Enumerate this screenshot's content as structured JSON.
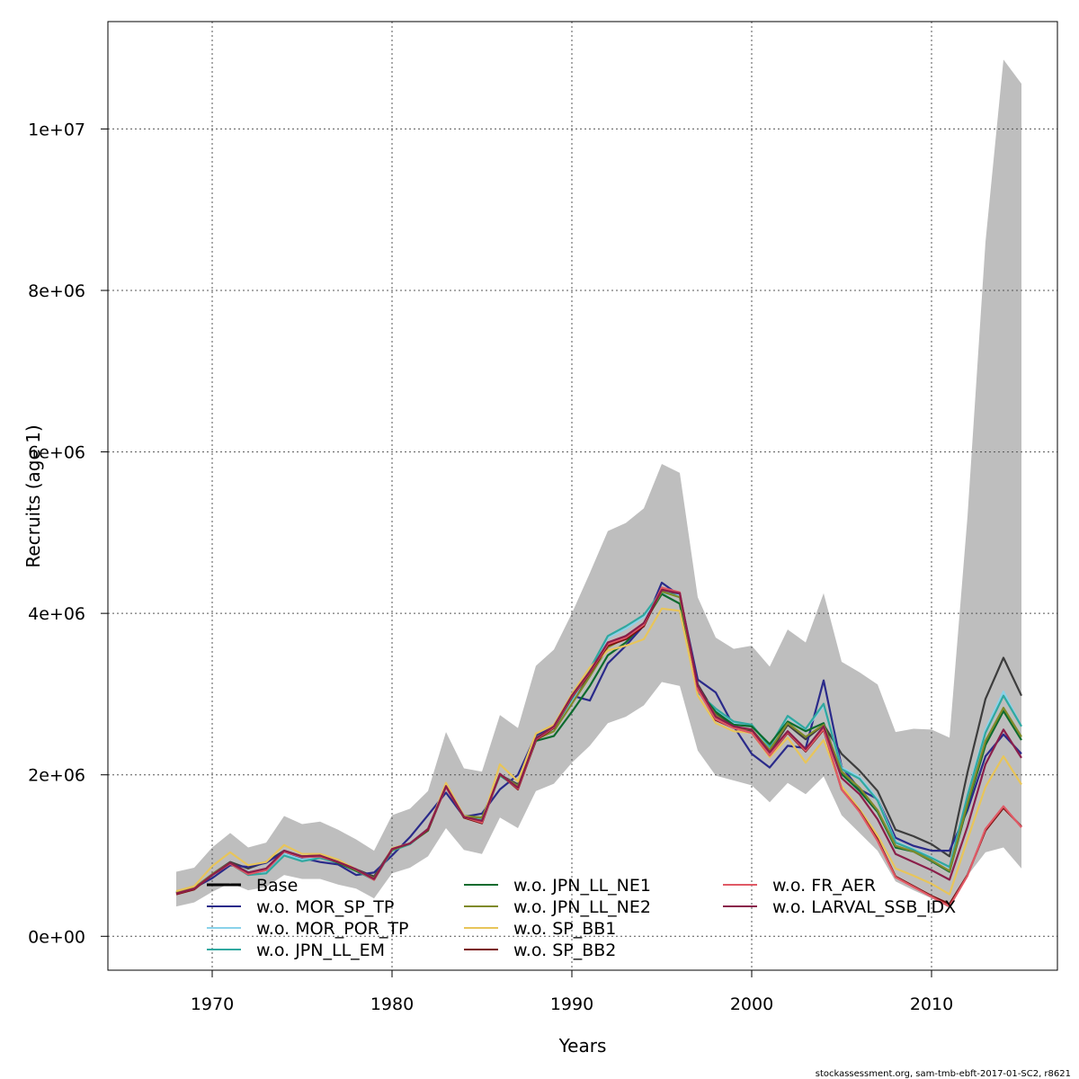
{
  "chart_data": {
    "type": "line",
    "xlabel": "Years",
    "ylabel": "Recruits (age 1)",
    "xlim": [
      1964.2,
      2017.0
    ],
    "ylim": [
      -420000,
      11330000
    ],
    "xticks": [
      1970,
      1980,
      1990,
      2000,
      2010
    ],
    "xtick_labels": [
      "1970",
      "1980",
      "1990",
      "2000",
      "2010"
    ],
    "yticks": [
      0,
      2000000,
      4000000,
      6000000,
      8000000,
      10000000
    ],
    "ytick_labels": [
      "0e+00",
      "2e+06",
      "4e+06",
      "6e+06",
      "8e+06",
      "1e+07"
    ],
    "grid": true,
    "legend_position": "bottom",
    "x": [
      1968,
      1969,
      1970,
      1971,
      1972,
      1973,
      1974,
      1975,
      1976,
      1977,
      1978,
      1979,
      1980,
      1981,
      1982,
      1983,
      1984,
      1985,
      1986,
      1987,
      1988,
      1989,
      1990,
      1991,
      1992,
      1993,
      1994,
      1995,
      1996,
      1997,
      1998,
      1999,
      2000,
      2001,
      2002,
      2003,
      2004,
      2005,
      2006,
      2007,
      2008,
      2009,
      2010,
      2011,
      2012,
      2013,
      2014,
      2015
    ],
    "band": {
      "color": "#bebebe",
      "upper": [
        800000,
        850000,
        1100000,
        1280000,
        1100000,
        1160000,
        1490000,
        1390000,
        1420000,
        1320000,
        1200000,
        1060000,
        1500000,
        1580000,
        1800000,
        2530000,
        2080000,
        2040000,
        2740000,
        2580000,
        3350000,
        3550000,
        4000000,
        4500000,
        5020000,
        5120000,
        5300000,
        5850000,
        5740000,
        4200000,
        3700000,
        3560000,
        3600000,
        3340000,
        3800000,
        3640000,
        4250000,
        3400000,
        3270000,
        3120000,
        2530000,
        2570000,
        2560000,
        2460000,
        5200000,
        8600000,
        10860000,
        10560000
      ],
      "lower": [
        370000,
        420000,
        550000,
        660000,
        570000,
        610000,
        760000,
        710000,
        710000,
        640000,
        590000,
        470000,
        780000,
        850000,
        990000,
        1340000,
        1070000,
        1020000,
        1470000,
        1340000,
        1800000,
        1890000,
        2150000,
        2360000,
        2640000,
        2720000,
        2860000,
        3150000,
        3100000,
        2300000,
        1990000,
        1930000,
        1870000,
        1660000,
        1900000,
        1760000,
        1980000,
        1500000,
        1280000,
        1060000,
        680000,
        570000,
        470000,
        350000,
        750000,
        1040000,
        1100000,
        840000
      ]
    },
    "series": [
      {
        "name": "Base",
        "color": "#3d3d3d",
        "values": [
          540000,
          600000,
          770000,
          920000,
          840000,
          920000,
          1060000,
          990000,
          1000000,
          920000,
          830000,
          740000,
          1080000,
          1150000,
          1330000,
          1870000,
          1490000,
          1460000,
          2000000,
          1880000,
          2460000,
          2570000,
          2900000,
          3250000,
          3620000,
          3720000,
          3870000,
          4300000,
          4230000,
          3120000,
          2750000,
          2600000,
          2540000,
          2280000,
          2620000,
          2440000,
          2620000,
          2260000,
          2050000,
          1800000,
          1320000,
          1240000,
          1140000,
          990000,
          2030000,
          2940000,
          3450000,
          2980000
        ]
      },
      {
        "name": "w.o. MOR_SP_TP",
        "color": "#2a2a8a",
        "values": [
          540000,
          600000,
          720000,
          880000,
          860000,
          910000,
          1050000,
          970000,
          920000,
          890000,
          760000,
          790000,
          1000000,
          1230000,
          1500000,
          1780000,
          1480000,
          1520000,
          1820000,
          2000000,
          2490000,
          2600000,
          2980000,
          2920000,
          3380000,
          3600000,
          3850000,
          4380000,
          4220000,
          3180000,
          3020000,
          2600000,
          2260000,
          2090000,
          2360000,
          2330000,
          3170000,
          2100000,
          1820000,
          1700000,
          1220000,
          1120000,
          1060000,
          1060000,
          1560000,
          2230000,
          2500000,
          2260000
        ]
      },
      {
        "name": "w.o. MOR_POR_TP",
        "color": "#8ad2ea",
        "values": [
          540000,
          600000,
          770000,
          900000,
          800000,
          790000,
          1020000,
          950000,
          990000,
          920000,
          830000,
          710000,
          1070000,
          1150000,
          1330000,
          1860000,
          1480000,
          1450000,
          2000000,
          1860000,
          2440000,
          2560000,
          2920000,
          3290000,
          3700000,
          3810000,
          3960000,
          4250000,
          4220000,
          3020000,
          2800000,
          2640000,
          2620000,
          2330000,
          2720000,
          2560000,
          2860000,
          2090000,
          1970000,
          1700000,
          1170000,
          1080000,
          980000,
          850000,
          1760000,
          2560000,
          3030000,
          2600000
        ]
      },
      {
        "name": "w.o. JPN_LL_EM",
        "color": "#30a8a0",
        "values": [
          540000,
          600000,
          760000,
          900000,
          760000,
          780000,
          1000000,
          930000,
          970000,
          910000,
          810000,
          700000,
          1060000,
          1140000,
          1320000,
          1860000,
          1470000,
          1440000,
          1990000,
          1840000,
          2440000,
          2580000,
          2940000,
          3310000,
          3720000,
          3840000,
          3980000,
          4280000,
          4200000,
          3020000,
          2820000,
          2660000,
          2620000,
          2350000,
          2730000,
          2570000,
          2880000,
          2070000,
          1950000,
          1680000,
          1160000,
          1070000,
          970000,
          860000,
          1740000,
          2520000,
          2980000,
          2600000
        ]
      },
      {
        "name": "w.o. JPN_LL_NE1",
        "color": "#0c6b2e",
        "values": [
          540000,
          600000,
          760000,
          910000,
          790000,
          830000,
          1050000,
          990000,
          1000000,
          910000,
          810000,
          720000,
          1070000,
          1150000,
          1310000,
          1860000,
          1490000,
          1470000,
          2000000,
          1840000,
          2420000,
          2480000,
          2780000,
          3100000,
          3480000,
          3640000,
          3880000,
          4240000,
          4120000,
          3050000,
          2780000,
          2620000,
          2600000,
          2380000,
          2660000,
          2540000,
          2640000,
          2010000,
          1800000,
          1540000,
          1100000,
          1050000,
          930000,
          800000,
          1620000,
          2370000,
          2790000,
          2430000
        ]
      },
      {
        "name": "w.o. JPN_LL_NE2",
        "color": "#7f8a2a",
        "values": [
          540000,
          600000,
          770000,
          910000,
          790000,
          830000,
          1050000,
          990000,
          1000000,
          920000,
          820000,
          720000,
          1070000,
          1150000,
          1320000,
          1870000,
          1490000,
          1470000,
          2000000,
          1860000,
          2440000,
          2540000,
          2880000,
          3220000,
          3580000,
          3700000,
          3860000,
          4270000,
          4200000,
          3060000,
          2740000,
          2580000,
          2560000,
          2310000,
          2640000,
          2470000,
          2620000,
          2040000,
          1840000,
          1560000,
          1120000,
          1050000,
          940000,
          810000,
          1650000,
          2420000,
          2830000,
          2470000
        ]
      },
      {
        "name": "w.o. SP_BB1",
        "color": "#e8c55a",
        "values": [
          560000,
          620000,
          870000,
          1040000,
          880000,
          920000,
          1130000,
          1020000,
          1020000,
          950000,
          830000,
          700000,
          1090000,
          1150000,
          1320000,
          1900000,
          1490000,
          1410000,
          2130000,
          1920000,
          2510000,
          2620000,
          3000000,
          3330000,
          3540000,
          3600000,
          3680000,
          4060000,
          4030000,
          2980000,
          2640000,
          2540000,
          2520000,
          2220000,
          2460000,
          2150000,
          2430000,
          1860000,
          1570000,
          1250000,
          840000,
          750000,
          650000,
          520000,
          1200000,
          1850000,
          2230000,
          1880000
        ]
      },
      {
        "name": "w.o. SP_BB2",
        "color": "#7a0f0f",
        "values": [
          520000,
          580000,
          760000,
          900000,
          770000,
          820000,
          1050000,
          980000,
          990000,
          920000,
          830000,
          700000,
          1080000,
          1150000,
          1320000,
          1850000,
          1470000,
          1400000,
          2010000,
          1820000,
          2430000,
          2580000,
          2960000,
          3260000,
          3600000,
          3680000,
          3840000,
          4300000,
          4250000,
          3060000,
          2680000,
          2580000,
          2520000,
          2240000,
          2520000,
          2290000,
          2560000,
          1820000,
          1550000,
          1200000,
          740000,
          620000,
          500000,
          400000,
          760000,
          1310000,
          1590000,
          1360000
        ]
      },
      {
        "name": "w.o. FR_AER",
        "color": "#e05a66",
        "values": [
          530000,
          590000,
          760000,
          900000,
          770000,
          820000,
          1050000,
          980000,
          990000,
          920000,
          830000,
          700000,
          1080000,
          1150000,
          1330000,
          1850000,
          1480000,
          1410000,
          2010000,
          1830000,
          2440000,
          2590000,
          2970000,
          3270000,
          3620000,
          3700000,
          3860000,
          4320000,
          4260000,
          3050000,
          2690000,
          2580000,
          2520000,
          2240000,
          2530000,
          2300000,
          2570000,
          1820000,
          1540000,
          1180000,
          730000,
          610000,
          490000,
          370000,
          750000,
          1330000,
          1610000,
          1350000
        ]
      },
      {
        "name": "w.o. LARVAL_SSB_IDX",
        "color": "#8a1e4a",
        "values": [
          530000,
          590000,
          760000,
          910000,
          790000,
          840000,
          1060000,
          990000,
          1000000,
          920000,
          830000,
          710000,
          1080000,
          1150000,
          1330000,
          1860000,
          1480000,
          1430000,
          2010000,
          1840000,
          2450000,
          2600000,
          2980000,
          3280000,
          3640000,
          3720000,
          3880000,
          4290000,
          4250000,
          3100000,
          2720000,
          2600000,
          2560000,
          2280000,
          2540000,
          2320000,
          2600000,
          1960000,
          1760000,
          1450000,
          1020000,
          920000,
          820000,
          700000,
          1360000,
          2130000,
          2560000,
          2210000
        ]
      }
    ],
    "legend": [
      {
        "label": "Base",
        "color": "#000000",
        "col": 0,
        "row": 0,
        "line": "thick"
      },
      {
        "label": "w.o. MOR_SP_TP",
        "color": "#2a2a8a",
        "col": 0,
        "row": 1
      },
      {
        "label": "w.o. MOR_POR_TP",
        "color": "#8ad2ea",
        "col": 0,
        "row": 2
      },
      {
        "label": "w.o. JPN_LL_EM",
        "color": "#30a8a0",
        "col": 0,
        "row": 3
      },
      {
        "label": "w.o. JPN_LL_NE1",
        "color": "#0c6b2e",
        "col": 1,
        "row": 0
      },
      {
        "label": "w.o. JPN_LL_NE2",
        "color": "#7f8a2a",
        "col": 1,
        "row": 1
      },
      {
        "label": "w.o. SP_BB1",
        "color": "#e8c55a",
        "col": 1,
        "row": 2
      },
      {
        "label": "w.o. SP_BB2",
        "color": "#7a0f0f",
        "col": 1,
        "row": 3
      },
      {
        "label": "w.o. FR_AER",
        "color": "#e05a66",
        "col": 2,
        "row": 0
      },
      {
        "label": "w.o. LARVAL_SSB_IDX",
        "color": "#8a1e4a",
        "col": 2,
        "row": 1
      }
    ],
    "footer": "stockassessment.org, sam-tmb-ebft-2017-01-SC2, r8621"
  }
}
